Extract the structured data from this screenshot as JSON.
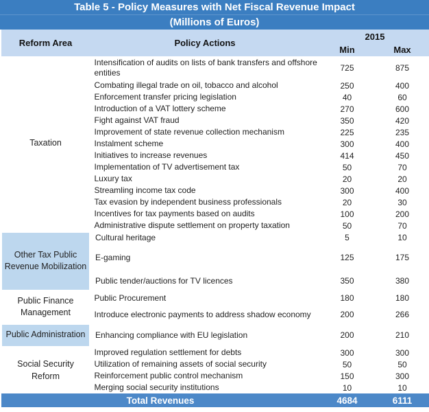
{
  "title": {
    "line1": "Table 5 - Policy Measures with Net Fiscal Revenue Impact",
    "line2": "(Millions of Euros)"
  },
  "header": {
    "reform_area": "Reform Area",
    "policy_actions": "Policy Actions",
    "year": "2015",
    "min": "Min",
    "max": "Max"
  },
  "sections": [
    {
      "reform_area": "Taxation",
      "shaded": false,
      "rows": [
        {
          "action": "Intensification of audits on lists of bank transfers and offshore entities",
          "min": "725",
          "max": "875"
        },
        {
          "action": "Combating illegal trade on oil, tobacco and alcohol",
          "min": "250",
          "max": "400"
        },
        {
          "action": "Enforcement transfer pricing legislation",
          "min": "40",
          "max": "60"
        },
        {
          "action": "Introduction of a VAT lottery scheme",
          "min": "270",
          "max": "600"
        },
        {
          "action": "Fight against VAT fraud",
          "min": "350",
          "max": "420"
        },
        {
          "action": "Improvement of state revenue collection mechanism",
          "min": "225",
          "max": "235"
        },
        {
          "action": "Instalment scheme",
          "min": "300",
          "max": "400"
        },
        {
          "action": "Initiatives to increase revenues",
          "min": "414",
          "max": "450"
        },
        {
          "action": "Implementation of TV advertisement tax",
          "min": "50",
          "max": "70"
        },
        {
          "action": "Luxury tax",
          "min": "20",
          "max": "20"
        },
        {
          "action": "Streamling income tax code",
          "min": "300",
          "max": "400"
        },
        {
          "action": "Tax evasion by independent business professionals",
          "min": "20",
          "max": "30"
        },
        {
          "action": "Incentives for tax payments based on audits",
          "min": "100",
          "max": "200"
        },
        {
          "action": "Administrative dispute settlement on property taxation",
          "min": "50",
          "max": "70"
        }
      ]
    },
    {
      "reform_area": "Other Tax Public Revenue Mobilization",
      "shaded": true,
      "rows": [
        {
          "action": "Cultural heritage",
          "min": "5",
          "max": "10"
        },
        {
          "action": "E-gaming",
          "min": "125",
          "max": "175"
        },
        {
          "action": "Public tender/auctions for TV licences",
          "min": "350",
          "max": "380"
        }
      ]
    },
    {
      "reform_area": "Public Finance Management",
      "shaded": false,
      "rows": [
        {
          "action": "Public Procurement",
          "min": "180",
          "max": "180"
        },
        {
          "action": "Introduce electronic payments to address shadow economy",
          "min": "200",
          "max": "266"
        }
      ]
    },
    {
      "reform_area": "Public Administration",
      "shaded": true,
      "rows": [
        {
          "action": "Enhancing compliance with EU legislation",
          "min": "200",
          "max": "210"
        }
      ]
    },
    {
      "reform_area": "Social Security Reform",
      "shaded": false,
      "rows": [
        {
          "action": "Improved regulation settlement for debts",
          "min": "300",
          "max": "300"
        },
        {
          "action": "Utilization of remaining assets of social security",
          "min": "50",
          "max": "50"
        },
        {
          "action": "Reinforcement public control mechanism",
          "min": "150",
          "max": "300"
        },
        {
          "action": "Merging social security institutions",
          "min": "10",
          "max": "10"
        }
      ]
    }
  ],
  "total": {
    "label": "Total Revenues",
    "min": "4684",
    "max": "6111"
  },
  "colors": {
    "title_bg": "#3B7EC1",
    "header_bg": "#C5D9F1",
    "section_bg": "#BDD7EE",
    "total_bg": "#4C88C8",
    "body_text": "#212121"
  }
}
